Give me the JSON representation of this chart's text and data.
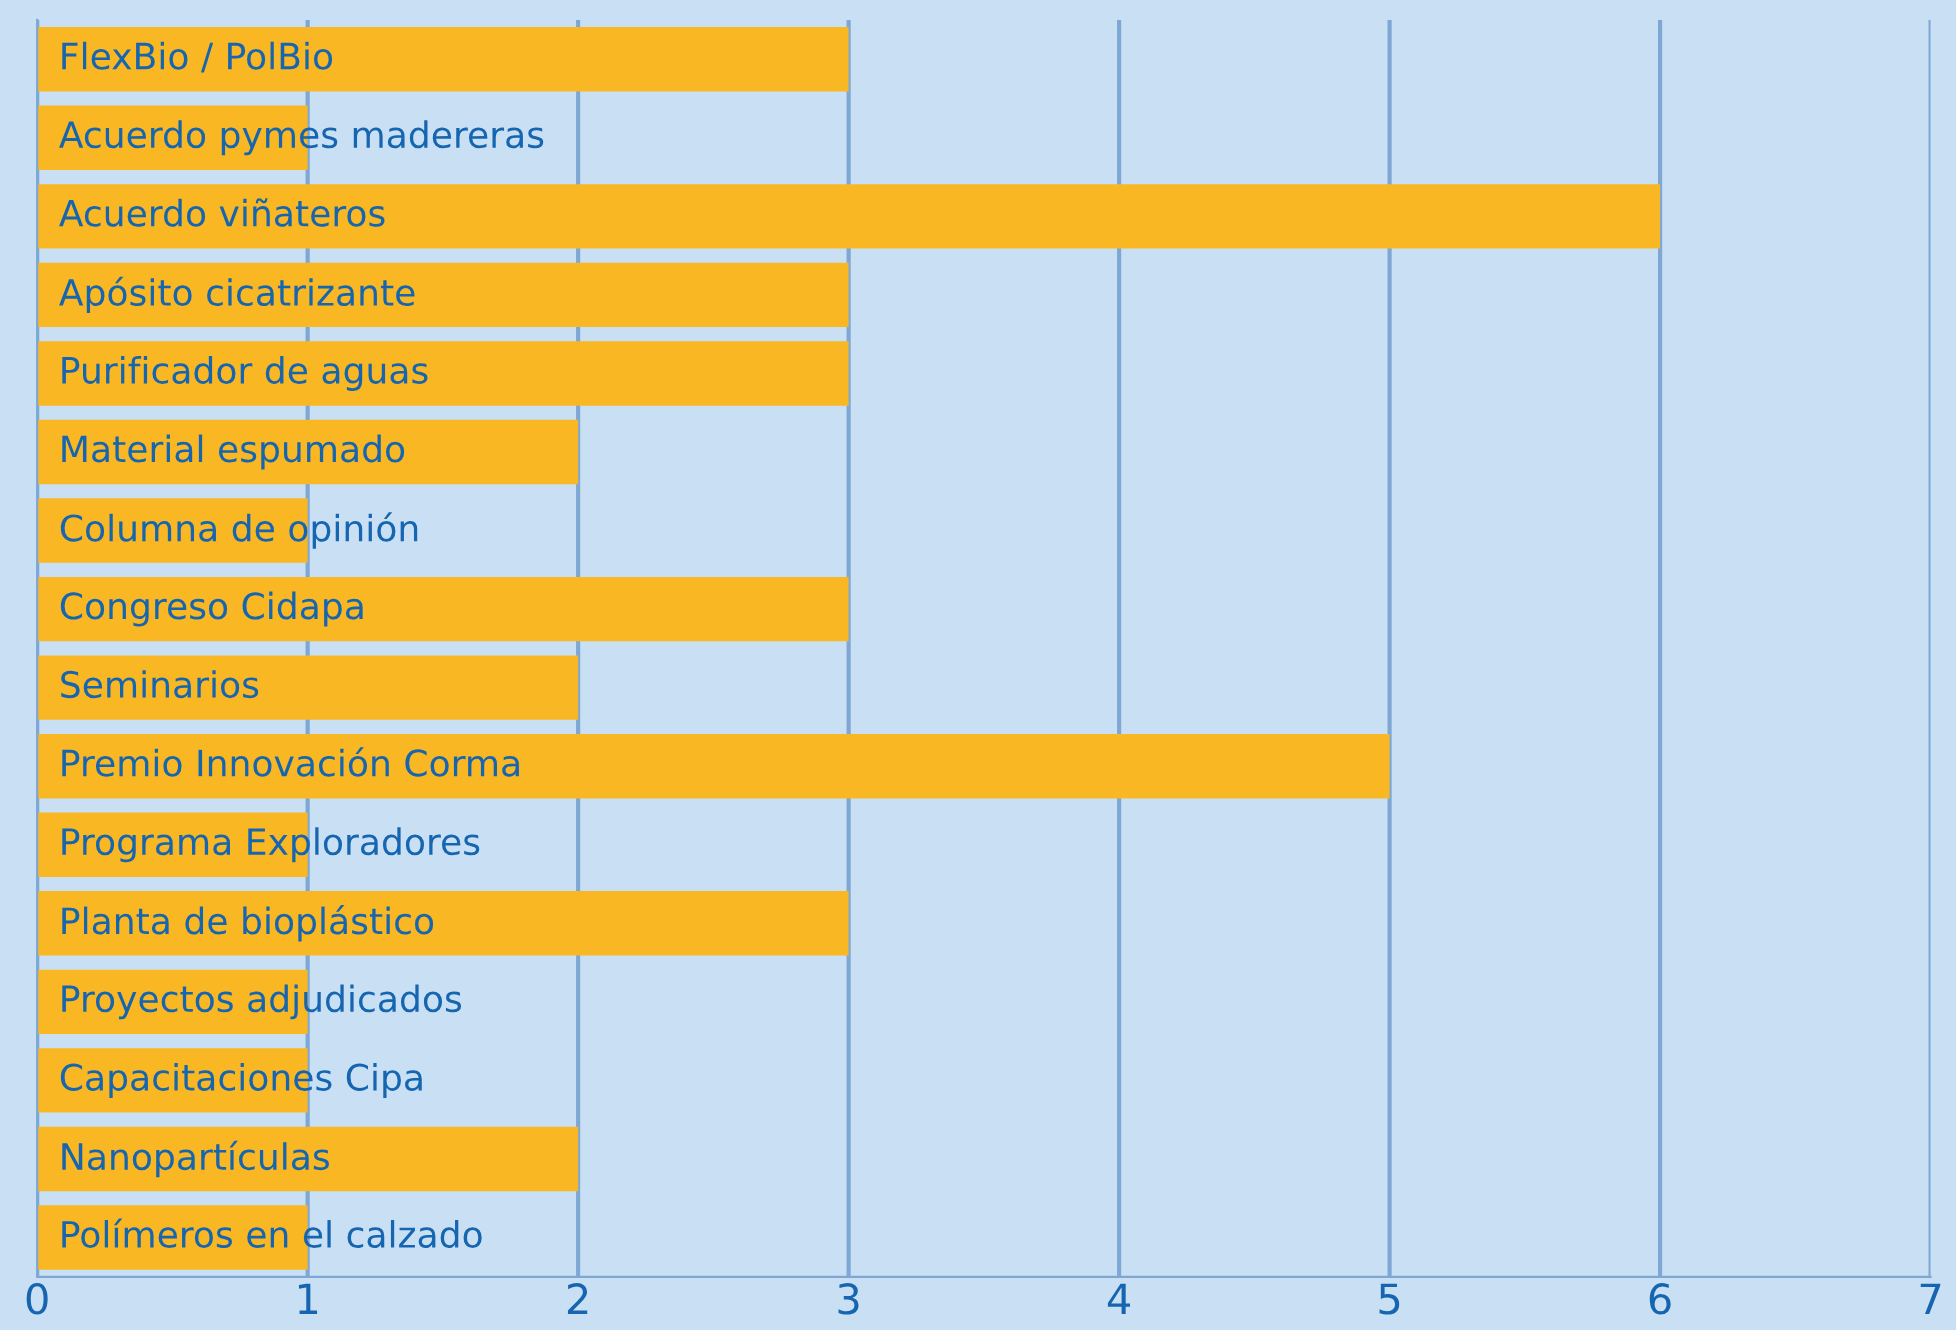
{
  "chart_data": {
    "type": "bar",
    "orientation": "horizontal",
    "categories": [
      "FlexBio / PolBio",
      "Acuerdo pymes madereras",
      "Acuerdo viñateros",
      "Apósito cicatrizante",
      "Purificador de aguas",
      "Material espumado",
      "Columna de opinión",
      "Congreso Cidapa",
      "Seminarios",
      "Premio Innovación Corma",
      "Programa Exploradores",
      "Planta de bioplástico",
      "Proyectos adjudicados",
      "Capacitaciones Cipa",
      "Nanopartículas",
      "Polímeros en el calzado"
    ],
    "values": [
      3,
      1,
      6,
      3,
      3,
      2,
      1,
      3,
      2,
      5,
      1,
      3,
      1,
      1,
      2,
      1
    ],
    "color": "#f8b723",
    "xlim": [
      0,
      7
    ],
    "xticks": [
      0,
      1,
      2,
      3,
      4,
      5,
      6,
      7
    ],
    "grid": "x"
  }
}
